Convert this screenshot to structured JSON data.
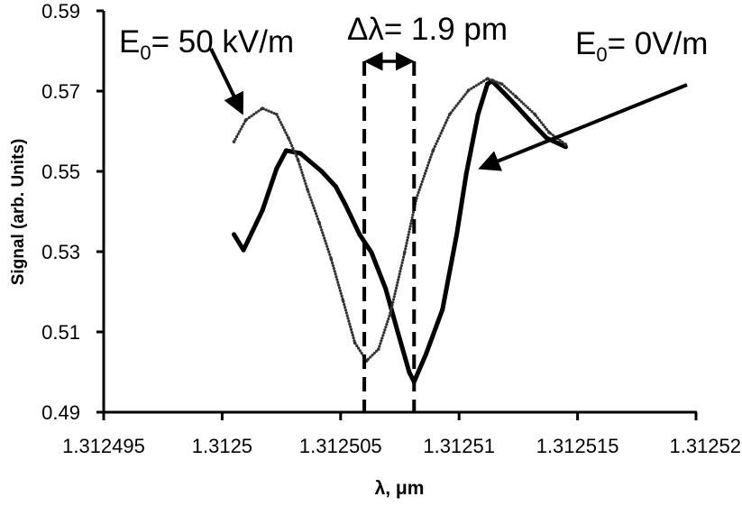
{
  "chart_data": {
    "type": "line",
    "title": "",
    "xlabel": "λ, μm",
    "ylabel": "Signal (arb. Units)",
    "xlim": [
      1.312495,
      1.31252
    ],
    "ylim": [
      0.49,
      0.59
    ],
    "x_ticks": [
      "1.312495",
      "1.3125",
      "1.312505",
      "1.31251",
      "1.312515",
      "1.31252"
    ],
    "y_ticks": [
      "0.49",
      "0.51",
      "0.53",
      "0.55",
      "0.57",
      "0.59"
    ],
    "grid": false,
    "series": [
      {
        "name": "E0= 0V/m",
        "style": "solid-thick",
        "color": "#000000",
        "x": [
          1.3125005,
          1.3125009,
          1.3125017,
          1.3125023,
          1.3125027,
          1.3125033,
          1.3125042,
          1.3125048,
          1.3125052,
          1.3125058,
          1.3125063,
          1.3125069,
          1.3125074,
          1.3125079,
          1.3125081,
          1.3125086,
          1.3125093,
          1.3125099,
          1.3125103,
          1.3125108,
          1.3125112,
          1.3125114,
          1.3125119,
          1.3125124,
          1.3125131,
          1.3125137,
          1.3125145
        ],
        "y": [
          0.5343,
          0.5304,
          0.5403,
          0.5507,
          0.5552,
          0.5545,
          0.55,
          0.5462,
          0.5417,
          0.5343,
          0.5298,
          0.5208,
          0.5102,
          0.4999,
          0.4976,
          0.5044,
          0.5156,
          0.5343,
          0.5493,
          0.5642,
          0.5718,
          0.5725,
          0.5695,
          0.5664,
          0.5619,
          0.5583,
          0.5561
        ]
      },
      {
        "name": "E0= 50 kV/m",
        "style": "dotted",
        "color": "#333333",
        "x": [
          1.3125005,
          1.312501,
          1.3125017,
          1.3125023,
          1.3125028,
          1.3125032,
          1.3125036,
          1.3125041,
          1.3125046,
          1.3125051,
          1.3125056,
          1.3125061,
          1.3125066,
          1.3125071,
          1.3125077,
          1.3125082,
          1.3125089,
          1.3125096,
          1.3125104,
          1.3125112,
          1.3125118,
          1.3125124,
          1.3125132,
          1.3125138,
          1.3125145
        ],
        "y": [
          0.5574,
          0.5628,
          0.5657,
          0.5642,
          0.5583,
          0.5529,
          0.5455,
          0.5372,
          0.5282,
          0.5179,
          0.5073,
          0.5028,
          0.5057,
          0.5147,
          0.5298,
          0.5433,
          0.5552,
          0.5642,
          0.5702,
          0.5731,
          0.5718,
          0.5686,
          0.5642,
          0.5597,
          0.5567
        ]
      }
    ],
    "annotations": {
      "label_50": {
        "prefix": "E",
        "sub": "0",
        "rest": "= 50 kV/m"
      },
      "label_0": {
        "prefix": "E",
        "sub": "0",
        "rest": "= 0V/m"
      },
      "delta": "Δλ= 1.9 pm",
      "dashed_markers_x": [
        1.312506,
        1.3125081
      ]
    }
  }
}
